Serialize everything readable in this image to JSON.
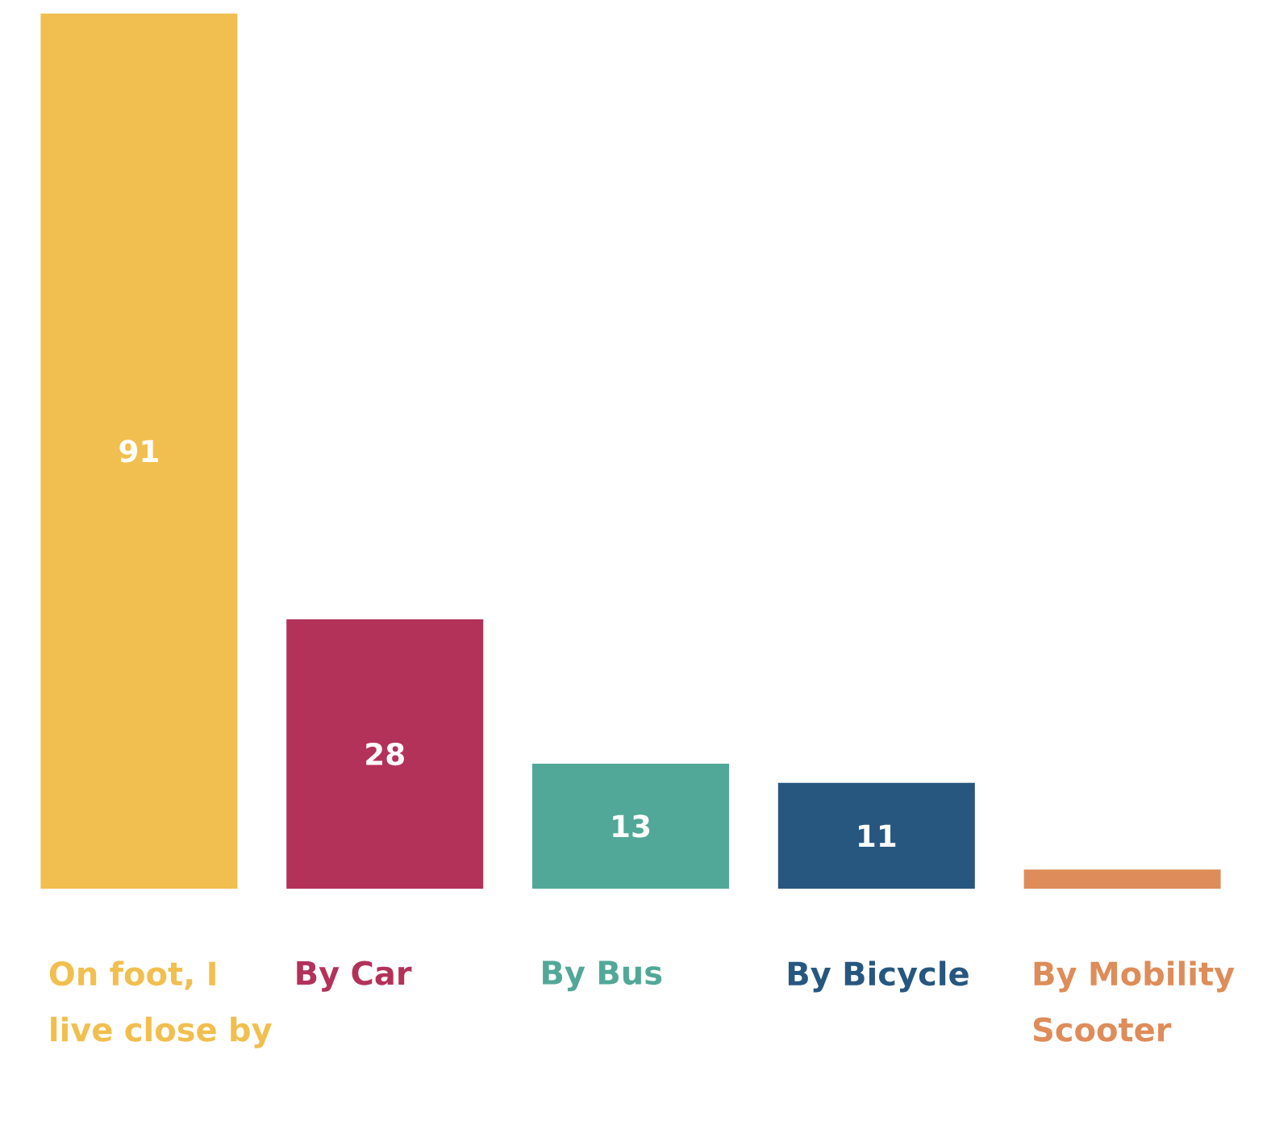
{
  "chart_data": {
    "type": "bar",
    "categories": [
      "On foot, I live close by",
      "By Car",
      "By Bus",
      "By Bicycle",
      "By Mobility Scooter"
    ],
    "values": [
      91,
      28,
      13,
      11,
      2
    ],
    "colors": [
      "#f1bf4f",
      "#b3325a",
      "#52a898",
      "#27577f",
      "#de8c59"
    ],
    "value_labels": [
      "91",
      "28",
      "13",
      "11",
      null
    ]
  }
}
